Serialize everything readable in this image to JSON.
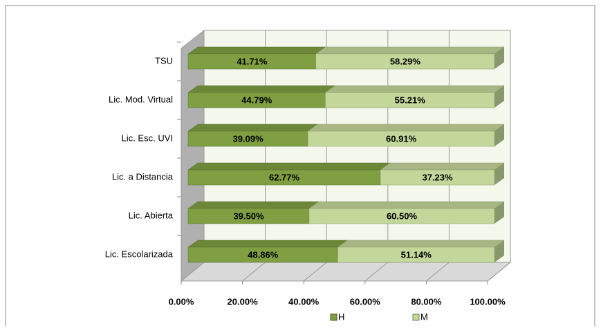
{
  "chart_data": {
    "type": "bar",
    "orientation": "horizontal",
    "stacked": true,
    "categories": [
      "TSU",
      "Lic. Mod. Virtual",
      "Lic. Esc. UVI",
      "Lic. a Distancia",
      "Lic. Abierta",
      "Lic. Escolarizada"
    ],
    "series": [
      {
        "name": "H",
        "color": "#7f9f42",
        "values": [
          41.71,
          44.79,
          39.09,
          62.77,
          39.5,
          48.86
        ],
        "value_labels": [
          "41.71%",
          "44.79%",
          "39.09%",
          "62.77%",
          "39.50%",
          "48.86%"
        ]
      },
      {
        "name": "M",
        "color": "#c4d79b",
        "values": [
          58.29,
          55.21,
          60.91,
          37.23,
          60.5,
          51.14
        ],
        "value_labels": [
          "58.29%",
          "55.21%",
          "60.91%",
          "37.23%",
          "60.50%",
          "51.14%"
        ]
      }
    ],
    "xlim": [
      0,
      100
    ],
    "xticks": [
      {
        "value": 0,
        "label": "0.00%"
      },
      {
        "value": 20,
        "label": "20.00%"
      },
      {
        "value": 40,
        "label": "40.00%"
      },
      {
        "value": 60,
        "label": "60.00%"
      },
      {
        "value": 80,
        "label": "80.00%"
      },
      {
        "value": 100,
        "label": "100.00%"
      }
    ],
    "grid": true,
    "legend": "bottom"
  }
}
